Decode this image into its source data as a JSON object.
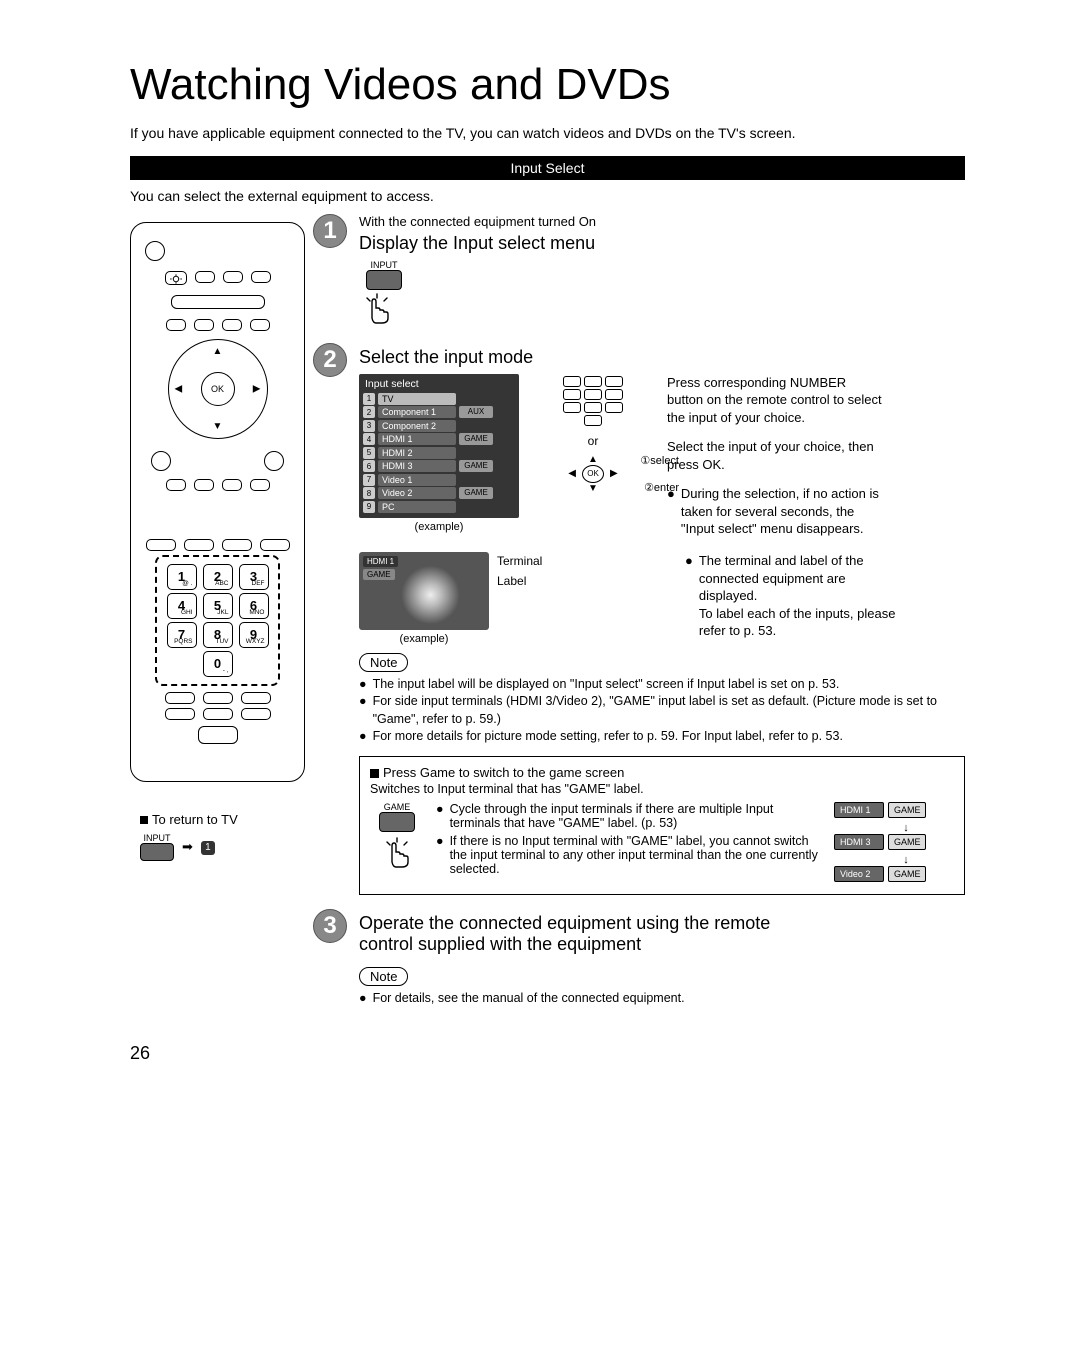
{
  "title": "Watching Videos and DVDs",
  "intro": "If you have applicable equipment connected to the TV, you can watch videos and DVDs on the TV's screen.",
  "section_bar": "Input Select",
  "subline": "You can select the external equipment to access.",
  "step1": {
    "num": "1",
    "sub": "With the connected equipment turned On",
    "title": "Display the Input select menu",
    "btn_caption": "INPUT"
  },
  "step2": {
    "num": "2",
    "title": "Select the input mode",
    "menu_header": "Input select",
    "items": [
      {
        "n": "1",
        "name": "TV",
        "label": ""
      },
      {
        "n": "2",
        "name": "Component 1",
        "label": "AUX"
      },
      {
        "n": "3",
        "name": "Component 2",
        "label": ""
      },
      {
        "n": "4",
        "name": "HDMI 1",
        "label": "GAME"
      },
      {
        "n": "5",
        "name": "HDMI 2",
        "label": ""
      },
      {
        "n": "6",
        "name": "HDMI 3",
        "label": "GAME"
      },
      {
        "n": "7",
        "name": "Video 1",
        "label": ""
      },
      {
        "n": "8",
        "name": "Video 2",
        "label": "GAME"
      },
      {
        "n": "9",
        "name": "PC",
        "label": ""
      }
    ],
    "example": "(example)",
    "or": "or",
    "ok": "OK",
    "annot_select": "①select",
    "annot_enter": "②enter",
    "right_p1": "Press corresponding NUMBER button on the remote control to select the input of your choice.",
    "right_p2": "Select the input of your choice, then press OK.",
    "right_b1": "During the selection, if no action is taken for several seconds, the \"Input select\" menu disappears.",
    "tv_badge1": "HDMI 1",
    "tv_badge2": "GAME",
    "tv_lbl_terminal": "Terminal",
    "tv_lbl_label": "Label",
    "right_b2": "The terminal and label of the connected equipment are displayed.",
    "right_b2b": "To label each of the inputs, please refer to p. 53.",
    "note_label": "Note",
    "notes": [
      "The input label will be displayed on \"Input select\" screen if Input label is set on p. 53.",
      "For side input terminals (HDMI 3/Video 2), \"GAME\" input label is set as default. (Picture mode is set to \"Game\", refer to p. 59.)",
      "For more details for picture mode setting, refer to p. 59. For Input label, refer to p. 53."
    ],
    "game_title_prefix": "V",
    "game_title": "Press Game to switch to the game screen",
    "game_sub": "Switches to Input terminal that has \"GAME\" label.",
    "game_btn_caption": "GAME",
    "game_b1": "Cycle through the input terminals if there are multiple Input terminals that have \"GAME\" label. (p. 53)",
    "game_b2": "If there is no Input terminal with \"GAME\" label, you cannot switch the input terminal to any other input terminal than the one currently selected.",
    "game_chips": [
      {
        "a": "HDMI 1",
        "b": "GAME"
      },
      {
        "a": "HDMI 3",
        "b": "GAME"
      },
      {
        "a": "Video 2",
        "b": "GAME"
      }
    ]
  },
  "return_tv": {
    "label": "To return to TV",
    "btn_caption": "INPUT",
    "arrow": "➡",
    "badge": "1"
  },
  "step3": {
    "num": "3",
    "title_a": "Operate the connected equipment using the remote",
    "title_b": "control supplied with the equipment",
    "note_label": "Note",
    "note": "For details, see the manual of the connected equipment."
  },
  "remote": {
    "ok": "OK",
    "keys": [
      {
        "big": "1",
        "sub": "@ ."
      },
      {
        "big": "2",
        "sub": "ABC"
      },
      {
        "big": "3",
        "sub": "DEF"
      },
      {
        "big": "4",
        "sub": "GHI"
      },
      {
        "big": "5",
        "sub": "JKL"
      },
      {
        "big": "6",
        "sub": "MNO"
      },
      {
        "big": "7",
        "sub": "PQRS"
      },
      {
        "big": "8",
        "sub": "TUV"
      },
      {
        "big": "9",
        "sub": "WXYZ"
      },
      {
        "big": "0",
        "sub": "- ,"
      }
    ]
  },
  "page_number": "26",
  "bullet": "●"
}
